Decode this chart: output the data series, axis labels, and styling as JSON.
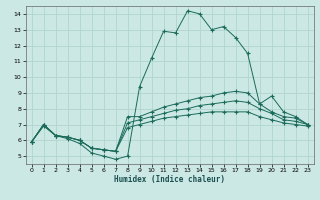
{
  "xlabel": "Humidex (Indice chaleur)",
  "bg_color": "#cce8e5",
  "line_color": "#1a6b5a",
  "grid_color": "#b0d4d0",
  "xlim": [
    -0.5,
    23.5
  ],
  "ylim": [
    4.5,
    14.5
  ],
  "xticks": [
    0,
    1,
    2,
    3,
    4,
    5,
    6,
    7,
    8,
    9,
    10,
    11,
    12,
    13,
    14,
    15,
    16,
    17,
    18,
    19,
    20,
    21,
    22,
    23
  ],
  "yticks": [
    5,
    6,
    7,
    8,
    9,
    10,
    11,
    12,
    13,
    14
  ],
  "lines": [
    {
      "x": [
        0,
        1,
        2,
        3,
        4,
        5,
        6,
        7,
        8,
        9,
        10,
        11,
        12,
        13,
        14,
        15,
        16,
        17,
        18,
        19,
        20,
        21,
        22,
        23
      ],
      "y": [
        5.9,
        7.0,
        6.3,
        6.1,
        5.8,
        5.2,
        5.0,
        4.8,
        5.0,
        9.4,
        11.2,
        12.9,
        12.8,
        14.2,
        14.0,
        13.0,
        13.2,
        12.5,
        11.5,
        8.3,
        8.8,
        7.8,
        7.5,
        7.0
      ]
    },
    {
      "x": [
        0,
        1,
        2,
        3,
        4,
        5,
        6,
        7,
        8,
        9,
        10,
        11,
        12,
        13,
        14,
        15,
        16,
        17,
        18,
        19,
        20,
        21,
        22,
        23
      ],
      "y": [
        5.9,
        7.0,
        6.3,
        6.2,
        6.0,
        5.5,
        5.4,
        5.3,
        7.5,
        7.5,
        7.8,
        8.1,
        8.3,
        8.5,
        8.7,
        8.8,
        9.0,
        9.1,
        9.0,
        8.3,
        7.8,
        7.5,
        7.4,
        7.0
      ]
    },
    {
      "x": [
        0,
        1,
        2,
        3,
        4,
        5,
        6,
        7,
        8,
        9,
        10,
        11,
        12,
        13,
        14,
        15,
        16,
        17,
        18,
        19,
        20,
        21,
        22,
        23
      ],
      "y": [
        5.9,
        7.0,
        6.3,
        6.2,
        6.0,
        5.5,
        5.4,
        5.3,
        7.1,
        7.3,
        7.5,
        7.7,
        7.9,
        8.0,
        8.2,
        8.3,
        8.4,
        8.5,
        8.4,
        8.0,
        7.7,
        7.3,
        7.2,
        7.0
      ]
    },
    {
      "x": [
        0,
        1,
        2,
        3,
        4,
        5,
        6,
        7,
        8,
        9,
        10,
        11,
        12,
        13,
        14,
        15,
        16,
        17,
        18,
        19,
        20,
        21,
        22,
        23
      ],
      "y": [
        5.9,
        6.9,
        6.3,
        6.2,
        6.0,
        5.5,
        5.4,
        5.3,
        6.8,
        7.0,
        7.2,
        7.4,
        7.5,
        7.6,
        7.7,
        7.8,
        7.8,
        7.8,
        7.8,
        7.5,
        7.3,
        7.1,
        7.0,
        6.9
      ]
    }
  ]
}
